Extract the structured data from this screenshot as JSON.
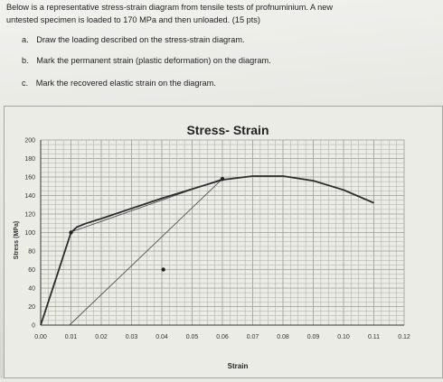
{
  "question": {
    "intro_line1": "Below is a representative stress-strain diagram from tensile tests of profnuminium. A new",
    "intro_line2": "untested specimen is loaded to 170 MPa and then unloaded. (15 pts)",
    "items": [
      {
        "marker": "a.",
        "text": "Draw the loading described on the stress-strain diagram."
      },
      {
        "marker": "b.",
        "text": "Mark the permanent strain (plastic deformation) on the diagram."
      },
      {
        "marker": "c.",
        "text": "Mark the recovered elastic strain on the diagram."
      }
    ]
  },
  "chart_data": {
    "type": "line",
    "title": "Stress- Strain",
    "xlabel": "Strain",
    "ylabel": "Stress (MPa)",
    "xlim": [
      0,
      0.12
    ],
    "ylim": [
      0,
      200
    ],
    "x_ticks": [
      "0.00",
      "0.01",
      "0.02",
      "0.03",
      "0.04",
      "0.05",
      "0.06",
      "0.07",
      "0.08",
      "0.09",
      "0.10",
      "0.11",
      "0.12"
    ],
    "y_ticks": [
      "0",
      "20",
      "40",
      "60",
      "80",
      "100",
      "120",
      "140",
      "160",
      "180",
      "200"
    ],
    "grid": true,
    "series": [
      {
        "x": [
          0.0,
          0.005,
          0.01,
          0.012,
          0.015,
          0.02,
          0.03,
          0.04,
          0.05,
          0.06,
          0.07,
          0.08,
          0.09,
          0.1,
          0.11
        ],
        "y": [
          0,
          50,
          100,
          106,
          110,
          115,
          126,
          137,
          147,
          157,
          161,
          161,
          156,
          146,
          132
        ]
      }
    ],
    "annotation_lines": [
      {
        "x": [
          0.0095,
          0.06
        ],
        "y": [
          0,
          158
        ]
      },
      {
        "x": [
          0.0095,
          0.06
        ],
        "y": [
          100,
          158
        ]
      }
    ],
    "marked_points": [
      {
        "x": 0.01,
        "y": 100
      },
      {
        "x": 0.06,
        "y": 158
      },
      {
        "x": 0.0405,
        "y": 60
      }
    ]
  },
  "colors": {
    "curve": "#2b2b2b",
    "grid": "#9c9c96",
    "axis": "#333333",
    "paper": "#ecece7"
  }
}
